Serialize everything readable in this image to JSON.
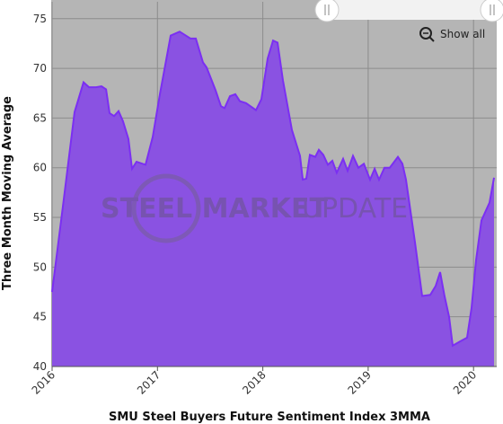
{
  "chart_data": {
    "type": "area",
    "y_label": "Three Month Moving Average",
    "x_label": "SMU Steel Buyers Future Sentiment Index 3MMA",
    "button": "Show all",
    "watermark": {
      "bold": "STEEL MARKET",
      "light": "UPDATE"
    },
    "x": [
      2016.0,
      2016.102,
      2016.213,
      2016.298,
      2016.35,
      2016.418,
      2016.469,
      2016.512,
      2016.546,
      2016.588,
      2016.631,
      2016.673,
      2016.725,
      2016.759,
      2016.801,
      2016.887,
      2016.955,
      2017.023,
      2017.125,
      2017.211,
      2017.313,
      2017.364,
      2017.432,
      2017.466,
      2017.552,
      2017.603,
      2017.637,
      2017.688,
      2017.739,
      2017.782,
      2017.841,
      2017.935,
      2017.986,
      2018.046,
      2018.097,
      2018.14,
      2018.191,
      2018.276,
      2018.353,
      2018.379,
      2018.413,
      2018.447,
      2018.498,
      2018.532,
      2018.575,
      2018.617,
      2018.66,
      2018.702,
      2018.762,
      2018.805,
      2018.856,
      2018.907,
      2018.959,
      2019.018,
      2019.061,
      2019.103,
      2019.154,
      2019.205,
      2019.282,
      2019.325,
      2019.359,
      2019.444,
      2019.512,
      2019.589,
      2019.64,
      2019.683,
      2019.725,
      2019.768,
      2019.802,
      2019.87,
      2019.939,
      2019.981,
      2020.024,
      2020.075,
      2020.152,
      2020.194
    ],
    "series": [
      {
        "name": "SMU Steel Buyers Future Sentiment Index 3MMA",
        "color": "#8a52e2",
        "line_color": "#7b2ff2",
        "values": [
          47.5,
          56.1,
          65.6,
          68.6,
          68.1,
          68.1,
          68.2,
          67.9,
          65.5,
          65.2,
          65.7,
          64.7,
          62.9,
          59.9,
          60.6,
          60.3,
          63.1,
          67.4,
          73.3,
          73.7,
          73.0,
          73.0,
          70.6,
          70.1,
          67.8,
          66.2,
          66.0,
          67.2,
          67.4,
          66.7,
          66.5,
          65.8,
          66.9,
          71.0,
          72.8,
          72.6,
          68.8,
          63.8,
          61.2,
          58.8,
          58.9,
          61.3,
          61.1,
          61.8,
          61.3,
          60.3,
          60.7,
          59.5,
          60.9,
          59.7,
          61.2,
          60.0,
          60.4,
          58.8,
          59.9,
          58.8,
          60.0,
          60.0,
          61.1,
          60.4,
          58.8,
          52.5,
          47.1,
          47.2,
          48.1,
          49.5,
          47.1,
          45.0,
          42.1,
          42.5,
          42.9,
          45.9,
          50.7,
          54.7,
          56.5,
          59.0
        ]
      }
    ],
    "xlim": [
      2016,
      2020.22
    ],
    "xticks": [
      2016,
      2017,
      2018,
      2019,
      2020
    ],
    "ylim": [
      40,
      76.7
    ],
    "yticks": [
      40,
      45,
      50,
      55,
      60,
      65,
      70,
      75
    ],
    "grid": true
  }
}
